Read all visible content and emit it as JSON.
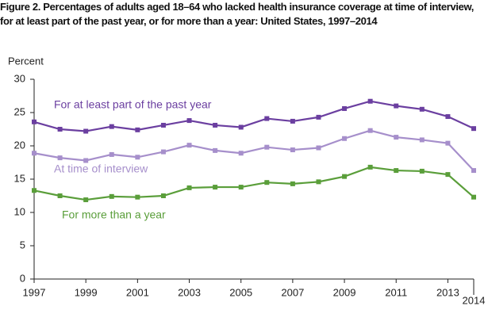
{
  "chart_data": {
    "type": "line",
    "title": "Figure 2. Percentages of adults aged 18–64 who lacked health insurance coverage at time of interview, for at least part of the past year, or for more than a year: United States, 1997–2014",
    "y_label": "Percent",
    "x": [
      1997,
      1998,
      1999,
      2000,
      2001,
      2002,
      2003,
      2004,
      2005,
      2006,
      2007,
      2008,
      2009,
      2010,
      2011,
      2012,
      2013,
      2014
    ],
    "xlim": [
      1997,
      2014
    ],
    "xticks": [
      1997,
      1999,
      2001,
      2003,
      2005,
      2007,
      2009,
      2011,
      2013,
      2014
    ],
    "ylim": [
      0,
      30
    ],
    "yticks": [
      0,
      5,
      10,
      15,
      20,
      25,
      30
    ],
    "series": [
      {
        "name": "For at least part of the past year",
        "color": "#6b3fa0",
        "values": [
          23.6,
          22.5,
          22.2,
          22.9,
          22.4,
          23.1,
          23.8,
          23.1,
          22.8,
          24.1,
          23.7,
          24.3,
          25.6,
          26.7,
          26.0,
          25.5,
          24.4,
          22.6
        ]
      },
      {
        "name": "At time of interview",
        "color": "#a68fcb",
        "values": [
          18.9,
          18.2,
          17.8,
          18.7,
          18.3,
          19.1,
          20.1,
          19.3,
          18.9,
          19.8,
          19.4,
          19.7,
          21.1,
          22.3,
          21.3,
          20.9,
          20.4,
          16.3
        ]
      },
      {
        "name": "For more than a year",
        "color": "#5a9e3a",
        "values": [
          13.3,
          12.5,
          11.9,
          12.4,
          12.3,
          12.5,
          13.7,
          13.8,
          13.8,
          14.5,
          14.3,
          14.6,
          15.4,
          16.8,
          16.3,
          16.2,
          15.7,
          12.3
        ]
      }
    ]
  }
}
